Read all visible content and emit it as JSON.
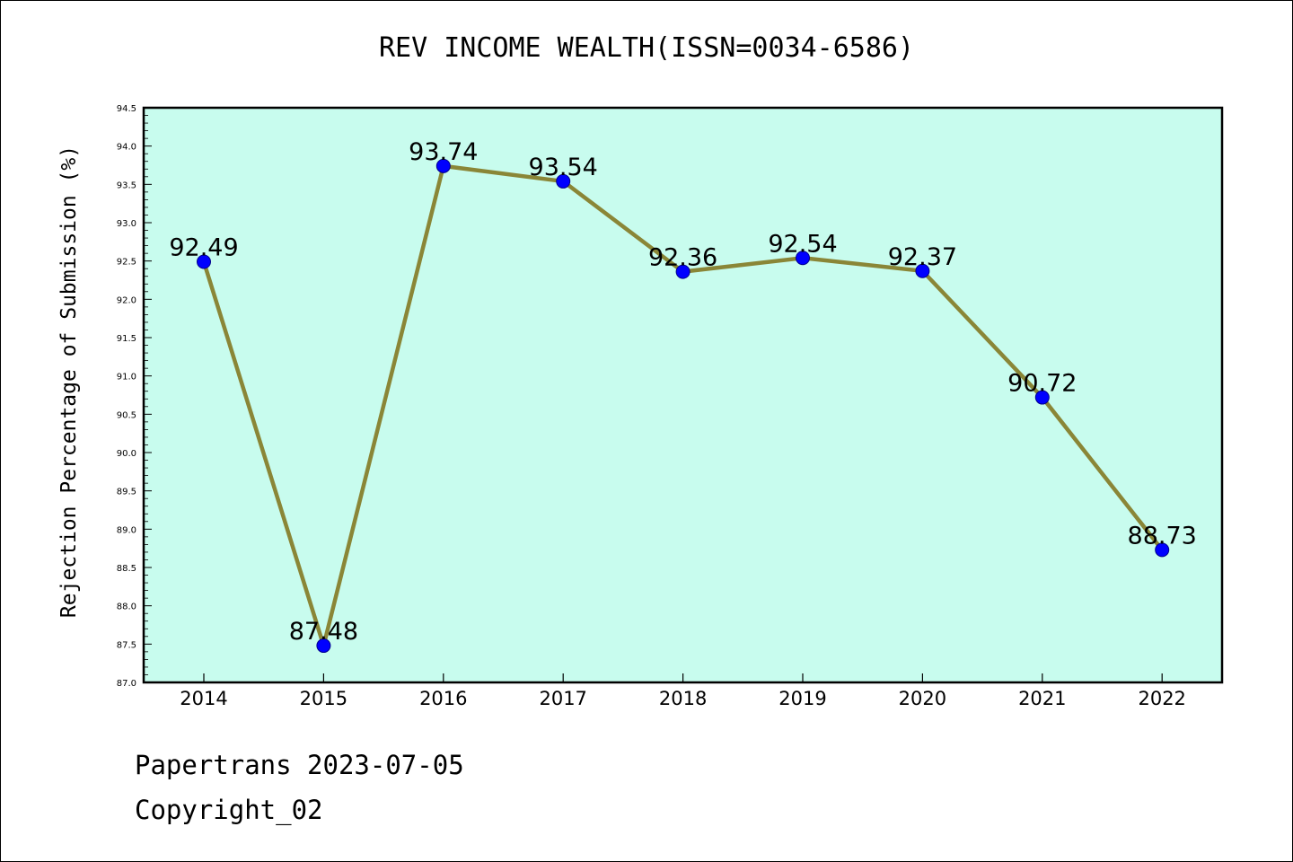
{
  "chart_data": {
    "type": "line",
    "title": "REV INCOME WEALTH(ISSN=0034-6586)",
    "xlabel": "",
    "ylabel": "Rejection Percentage of Submission (%)",
    "categories": [
      "2014",
      "2015",
      "2016",
      "2017",
      "2018",
      "2019",
      "2020",
      "2021",
      "2022"
    ],
    "values": [
      92.49,
      87.48,
      93.74,
      93.54,
      92.36,
      92.54,
      92.37,
      90.72,
      88.73
    ],
    "data_labels": [
      "92.49",
      "87.48",
      "93.74",
      "93.54",
      "92.36",
      "92.54",
      "92.37",
      "90.72",
      "88.73"
    ],
    "ylim": [
      87.0,
      94.5
    ],
    "yticks": [
      "87.0",
      "87.5",
      "88.0",
      "88.5",
      "89.0",
      "89.5",
      "90.0",
      "90.5",
      "91.0",
      "91.5",
      "92.0",
      "92.5",
      "93.0",
      "93.5",
      "94.0",
      "94.5"
    ],
    "grid": false,
    "legend": "none",
    "colors": {
      "plot_background": "#c8fcee",
      "line": "#8a8637",
      "marker": "#0000ff",
      "marker_edge": "#00008b"
    }
  },
  "footer": {
    "line1": "Papertrans 2023-07-05",
    "line2": "Copyright_02"
  }
}
